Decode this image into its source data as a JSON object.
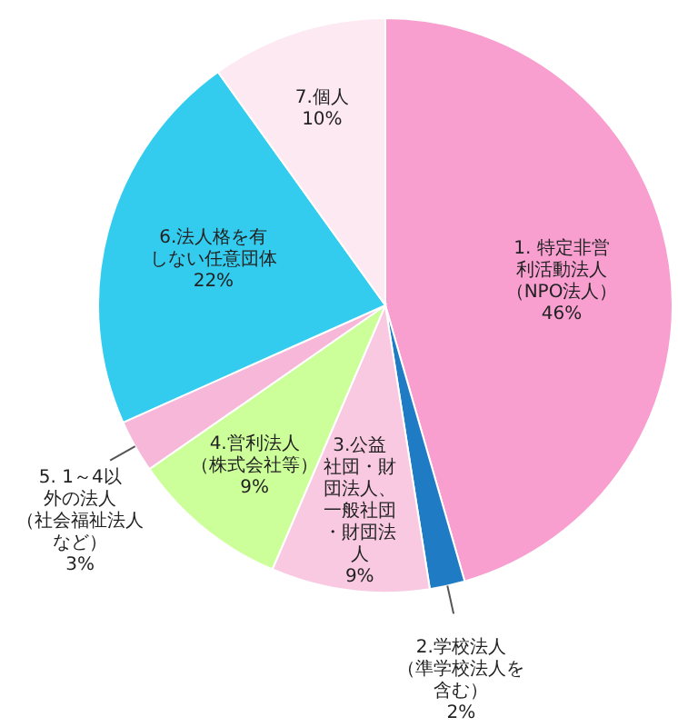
{
  "chart_data": {
    "type": "pie",
    "categories": [
      "1. 特定非営利活動法人（NPO法人）",
      "2.学校法人（準学校法人を含む）",
      "3.公益社団・財団法人、一般社団・財団法人",
      "4.営利法人（株式会社等）",
      "5. 1～4以外の法人（社会福祉法人など）",
      "6.法人格を有しない任意団体",
      "7.個人"
    ],
    "values": [
      46,
      2,
      9,
      9,
      3,
      22,
      10
    ],
    "value_labels": [
      "46%",
      "2%",
      "9%",
      "9%",
      "3%",
      "22%",
      "10%"
    ],
    "colors": [
      "#f89fd0",
      "#1f7cc4",
      "#f9c9e2",
      "#ccff99",
      "#f7b7d8",
      "#33ccee",
      "#fde9f2"
    ],
    "legend": false
  }
}
